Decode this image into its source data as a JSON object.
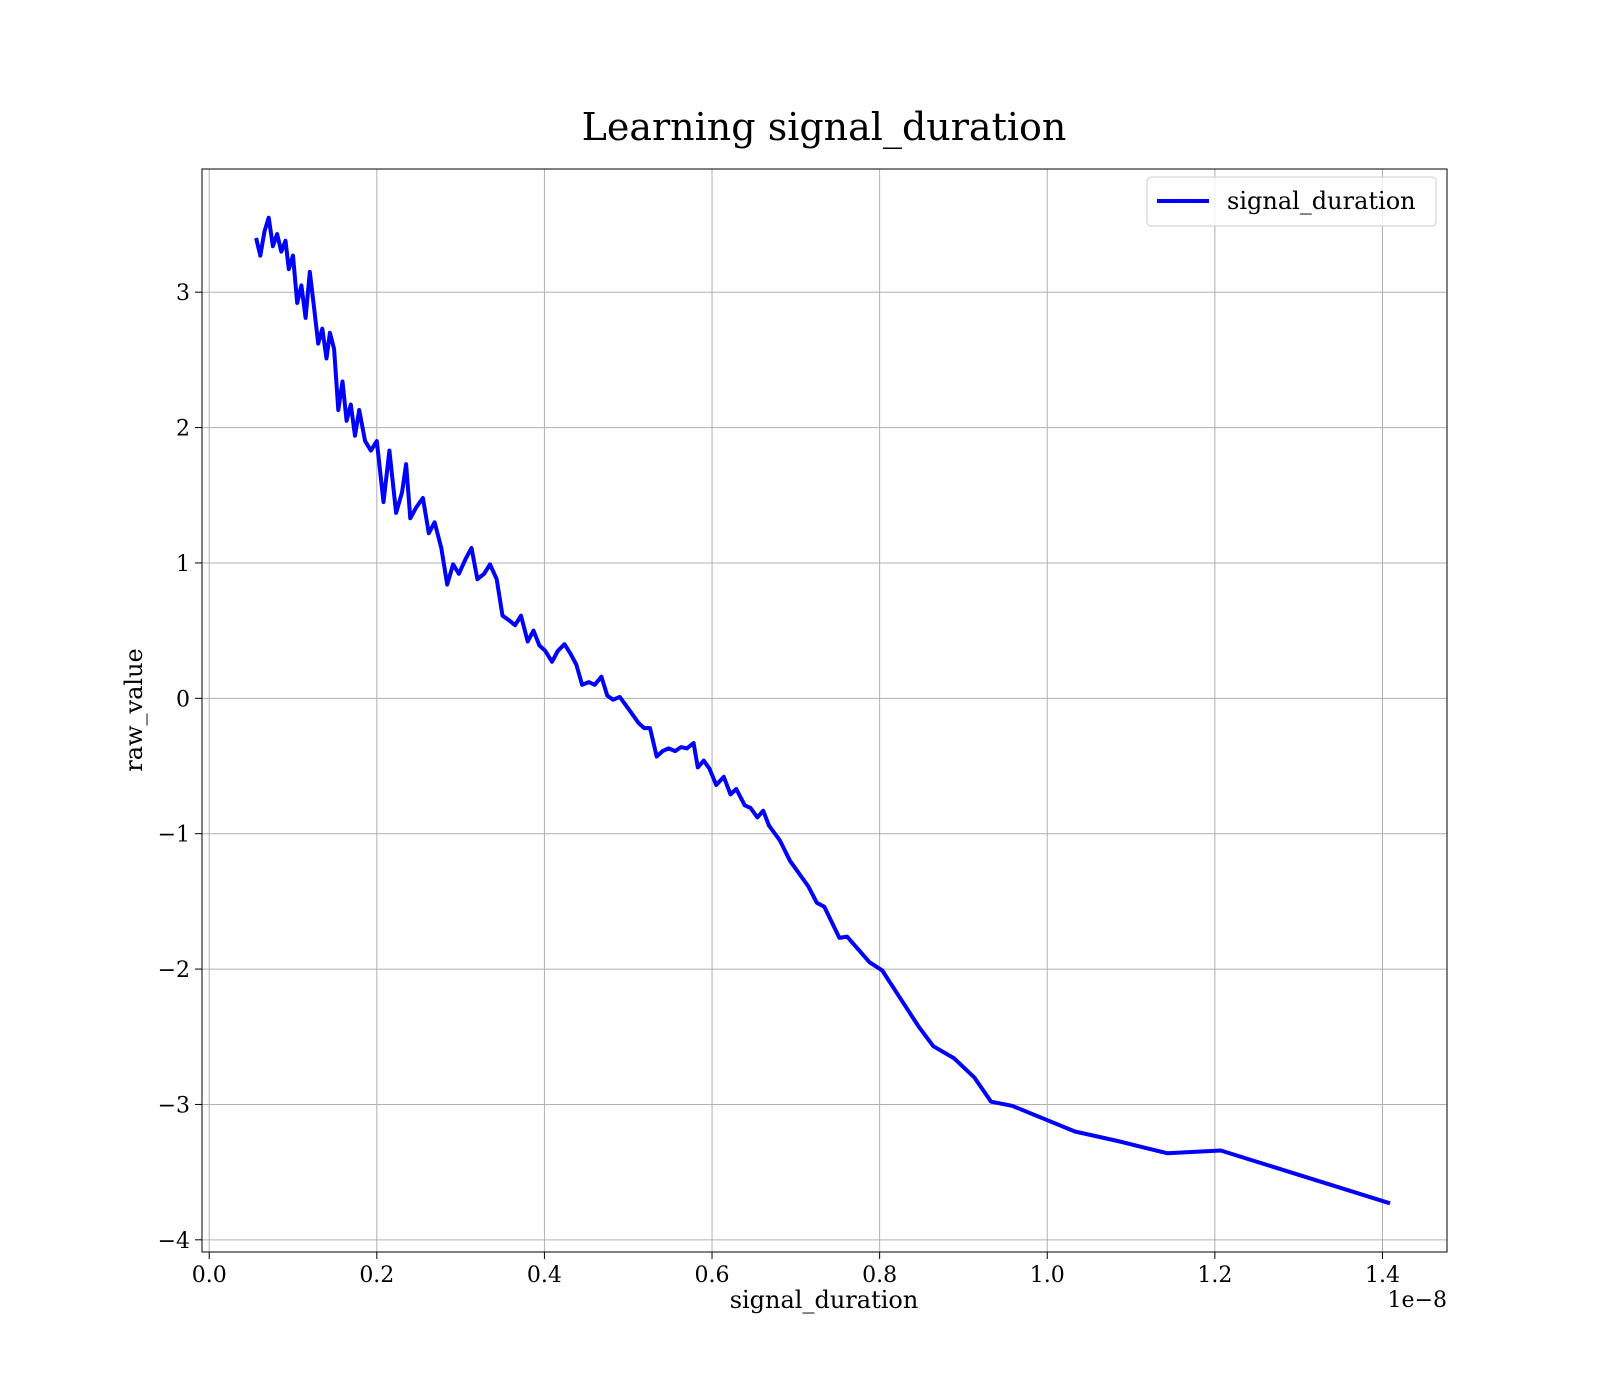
{
  "chart_data": {
    "type": "line",
    "title": "Learning signal_duration",
    "x_label": "signal_duration",
    "y_label": "raw_value",
    "x_offset_label": "1e−8",
    "x": [
      0.056,
      0.061,
      0.066,
      0.071,
      0.076,
      0.081,
      0.086,
      0.091,
      0.095,
      0.1,
      0.105,
      0.11,
      0.115,
      0.12,
      0.125,
      0.13,
      0.135,
      0.14,
      0.144,
      0.149,
      0.154,
      0.159,
      0.164,
      0.169,
      0.174,
      0.179,
      0.186,
      0.193,
      0.2,
      0.208,
      0.215,
      0.223,
      0.23,
      0.235,
      0.24,
      0.247,
      0.255,
      0.262,
      0.269,
      0.277,
      0.284,
      0.291,
      0.298,
      0.306,
      0.313,
      0.32,
      0.328,
      0.335,
      0.343,
      0.35,
      0.357,
      0.365,
      0.372,
      0.38,
      0.387,
      0.394,
      0.401,
      0.409,
      0.416,
      0.424,
      0.431,
      0.438,
      0.445,
      0.453,
      0.46,
      0.468,
      0.475,
      0.482,
      0.49,
      0.497,
      0.504,
      0.512,
      0.519,
      0.526,
      0.534,
      0.541,
      0.548,
      0.556,
      0.563,
      0.57,
      0.578,
      0.583,
      0.59,
      0.597,
      0.605,
      0.614,
      0.622,
      0.629,
      0.639,
      0.646,
      0.654,
      0.661,
      0.668,
      0.681,
      0.693,
      0.715,
      0.725,
      0.734,
      0.752,
      0.761,
      0.788,
      0.803,
      0.846,
      0.864,
      0.889,
      0.913,
      0.933,
      0.958,
      1.033,
      1.084,
      1.143,
      1.207,
      1.409
    ],
    "series": [
      {
        "name": "signal_duration",
        "color": "#0000ff",
        "values": [
          3.4,
          3.27,
          3.45,
          3.55,
          3.34,
          3.43,
          3.3,
          3.38,
          3.17,
          3.27,
          2.92,
          3.05,
          2.81,
          3.15,
          2.89,
          2.62,
          2.73,
          2.51,
          2.7,
          2.58,
          2.13,
          2.34,
          2.05,
          2.17,
          1.94,
          2.13,
          1.9,
          1.83,
          1.9,
          1.45,
          1.83,
          1.37,
          1.52,
          1.73,
          1.33,
          1.41,
          1.48,
          1.22,
          1.3,
          1.11,
          0.84,
          0.99,
          0.92,
          1.03,
          1.11,
          0.88,
          0.92,
          0.99,
          0.88,
          0.61,
          0.58,
          0.54,
          0.61,
          0.42,
          0.5,
          0.39,
          0.35,
          0.27,
          0.35,
          0.4,
          0.33,
          0.25,
          0.1,
          0.12,
          0.1,
          0.16,
          0.02,
          -0.01,
          0.01,
          -0.05,
          -0.11,
          -0.18,
          -0.22,
          -0.22,
          -0.43,
          -0.39,
          -0.37,
          -0.39,
          -0.36,
          -0.37,
          -0.33,
          -0.51,
          -0.46,
          -0.52,
          -0.64,
          -0.58,
          -0.71,
          -0.67,
          -0.79,
          -0.81,
          -0.88,
          -0.83,
          -0.94,
          -1.05,
          -1.2,
          -1.39,
          -1.51,
          -1.54,
          -1.77,
          -1.76,
          -1.95,
          -2.01,
          -2.42,
          -2.57,
          -2.66,
          -2.8,
          -2.98,
          -3.01,
          -3.2,
          -3.27,
          -3.36,
          -3.34,
          -3.73
        ]
      }
    ],
    "xlim": [
      -0.0086,
      1.477
    ],
    "ylim": [
      -4.09,
      3.91
    ],
    "xticks": [
      {
        "value": 0,
        "label": "0.0"
      },
      0.2,
      0.4,
      0.6,
      0.8,
      {
        "value": 1,
        "label": "1.0"
      },
      1.2,
      1.4
    ],
    "yticks": [
      {
        "value": -4,
        "label": "−4"
      },
      {
        "value": -3,
        "label": "−3"
      },
      {
        "value": -2,
        "label": "−2"
      },
      {
        "value": -1,
        "label": "−1"
      },
      0,
      1,
      2,
      3
    ],
    "grid": true,
    "legend": "upper right"
  }
}
